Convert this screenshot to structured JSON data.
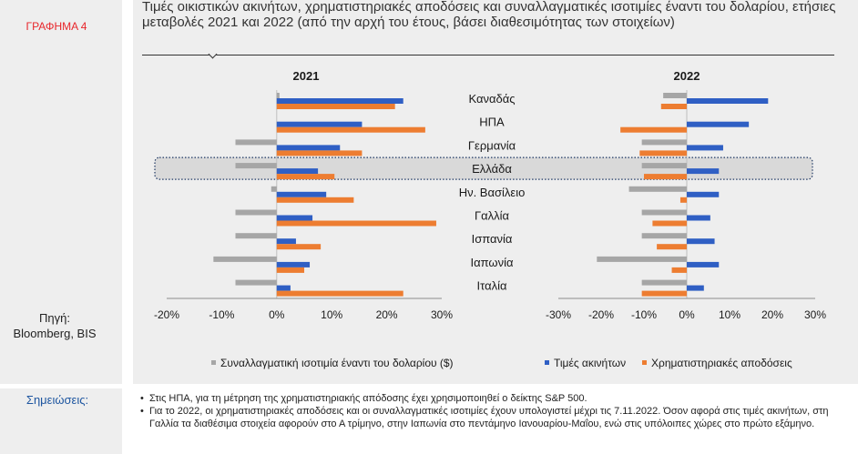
{
  "figure_label": "ΓΡΑΦΗΜΑ 4",
  "source_label": "Πηγή:",
  "source_value": "Bloomberg, BIS",
  "notes_label": "Σημειώσεις:",
  "notes": [
    "Στις ΗΠΑ, για τη μέτρηση της χρηματιστηριακής απόδοσης έχει χρησιμοποιηθεί ο δείκτης S&P 500.",
    "Για το 2022, οι χρηματιστηριακές αποδόσεις και οι συναλλαγματικές ισοτιμίες έχουν υπολογιστεί μέχρι τις 7.11.2022. Όσον αφορά στις τιμές ακινήτων, στη Γαλλία τα διαθέσιμα στοιχεία αφορούν στο Α τρίμηνο, στην Ιαπωνία στο πεντάμηνο Ιανουαρίου-Μαΐου, ενώ στις υπόλοιπες χώρες στο πρώτο εξάμηνο."
  ],
  "colors": {
    "fx": "#a6a6a6",
    "house": "#2f5fc4",
    "stock": "#ed7d31",
    "highlight_fill": "#d9d9d9",
    "highlight_border": "#1f3864"
  },
  "chart_data": {
    "type": "bar",
    "title": "Τιμές οικιστικών ακινήτων, χρηματιστηριακές αποδόσεις και συναλλαγματικές ισοτιμίες έναντι του δολαρίου, ετήσιες μεταβολές 2021 και 2022 (από την αρχή του έτους, βάσει διαθεσιμότητας των στοιχείων)",
    "categories": [
      "Καναδάς",
      "ΗΠΑ",
      "Γερμανία",
      "Ελλάδα",
      "Ην. Βασίλειο",
      "Γαλλία",
      "Ισπανία",
      "Ιαπωνία",
      "Ιταλία"
    ],
    "highlighted_category": "Ελλάδα",
    "series_names": [
      "Συναλλαγματική ισοτιμία έναντι του δολαρίου ($)",
      "Τιμές ακινήτων",
      "Χρηματιστηριακές αποδόσεις"
    ],
    "panels": [
      {
        "title": "2021",
        "xlim": [
          -20,
          30
        ],
        "ticks": [
          "-20%",
          "-10%",
          "0%",
          "10%",
          "20%",
          "30%"
        ],
        "tick_values": [
          -20,
          -10,
          0,
          10,
          20,
          30
        ],
        "series": [
          {
            "name": "Συναλλαγματική ισοτιμία έναντι του δολαρίου ($)",
            "values": [
              0.5,
              0,
              -7.5,
              -7.5,
              -1,
              -7.5,
              -7.5,
              -11.5,
              -7.5
            ]
          },
          {
            "name": "Τιμές ακινήτων",
            "values": [
              23,
              15.5,
              11.5,
              7.5,
              9,
              6.5,
              3.5,
              6,
              2.5
            ]
          },
          {
            "name": "Χρηματιστηριακές αποδόσεις",
            "values": [
              21.5,
              27,
              15.5,
              10.5,
              14,
              29,
              8,
              5,
              23
            ]
          }
        ]
      },
      {
        "title": "2022",
        "xlim": [
          -30,
          30
        ],
        "ticks": [
          "-30%",
          "-20%",
          "-10%",
          "0%",
          "10%",
          "20%",
          "30%"
        ],
        "tick_values": [
          -30,
          -20,
          -10,
          0,
          10,
          20,
          30
        ],
        "series": [
          {
            "name": "Συναλλαγματική ισοτιμία έναντι του δολαρίου ($)",
            "values": [
              -5.5,
              0,
              -10.5,
              -10.5,
              -13.5,
              -10.5,
              -10.5,
              -21,
              -10.5
            ]
          },
          {
            "name": "Τιμές ακινήτων",
            "values": [
              19,
              14.5,
              8.5,
              7.5,
              7.5,
              5.5,
              6.5,
              7.5,
              4
            ]
          },
          {
            "name": "Χρηματιστηριακές αποδόσεις",
            "values": [
              -6,
              -15.5,
              -11,
              -10,
              -1.5,
              -8,
              -7,
              -3.5,
              -10.5
            ]
          }
        ]
      }
    ]
  }
}
